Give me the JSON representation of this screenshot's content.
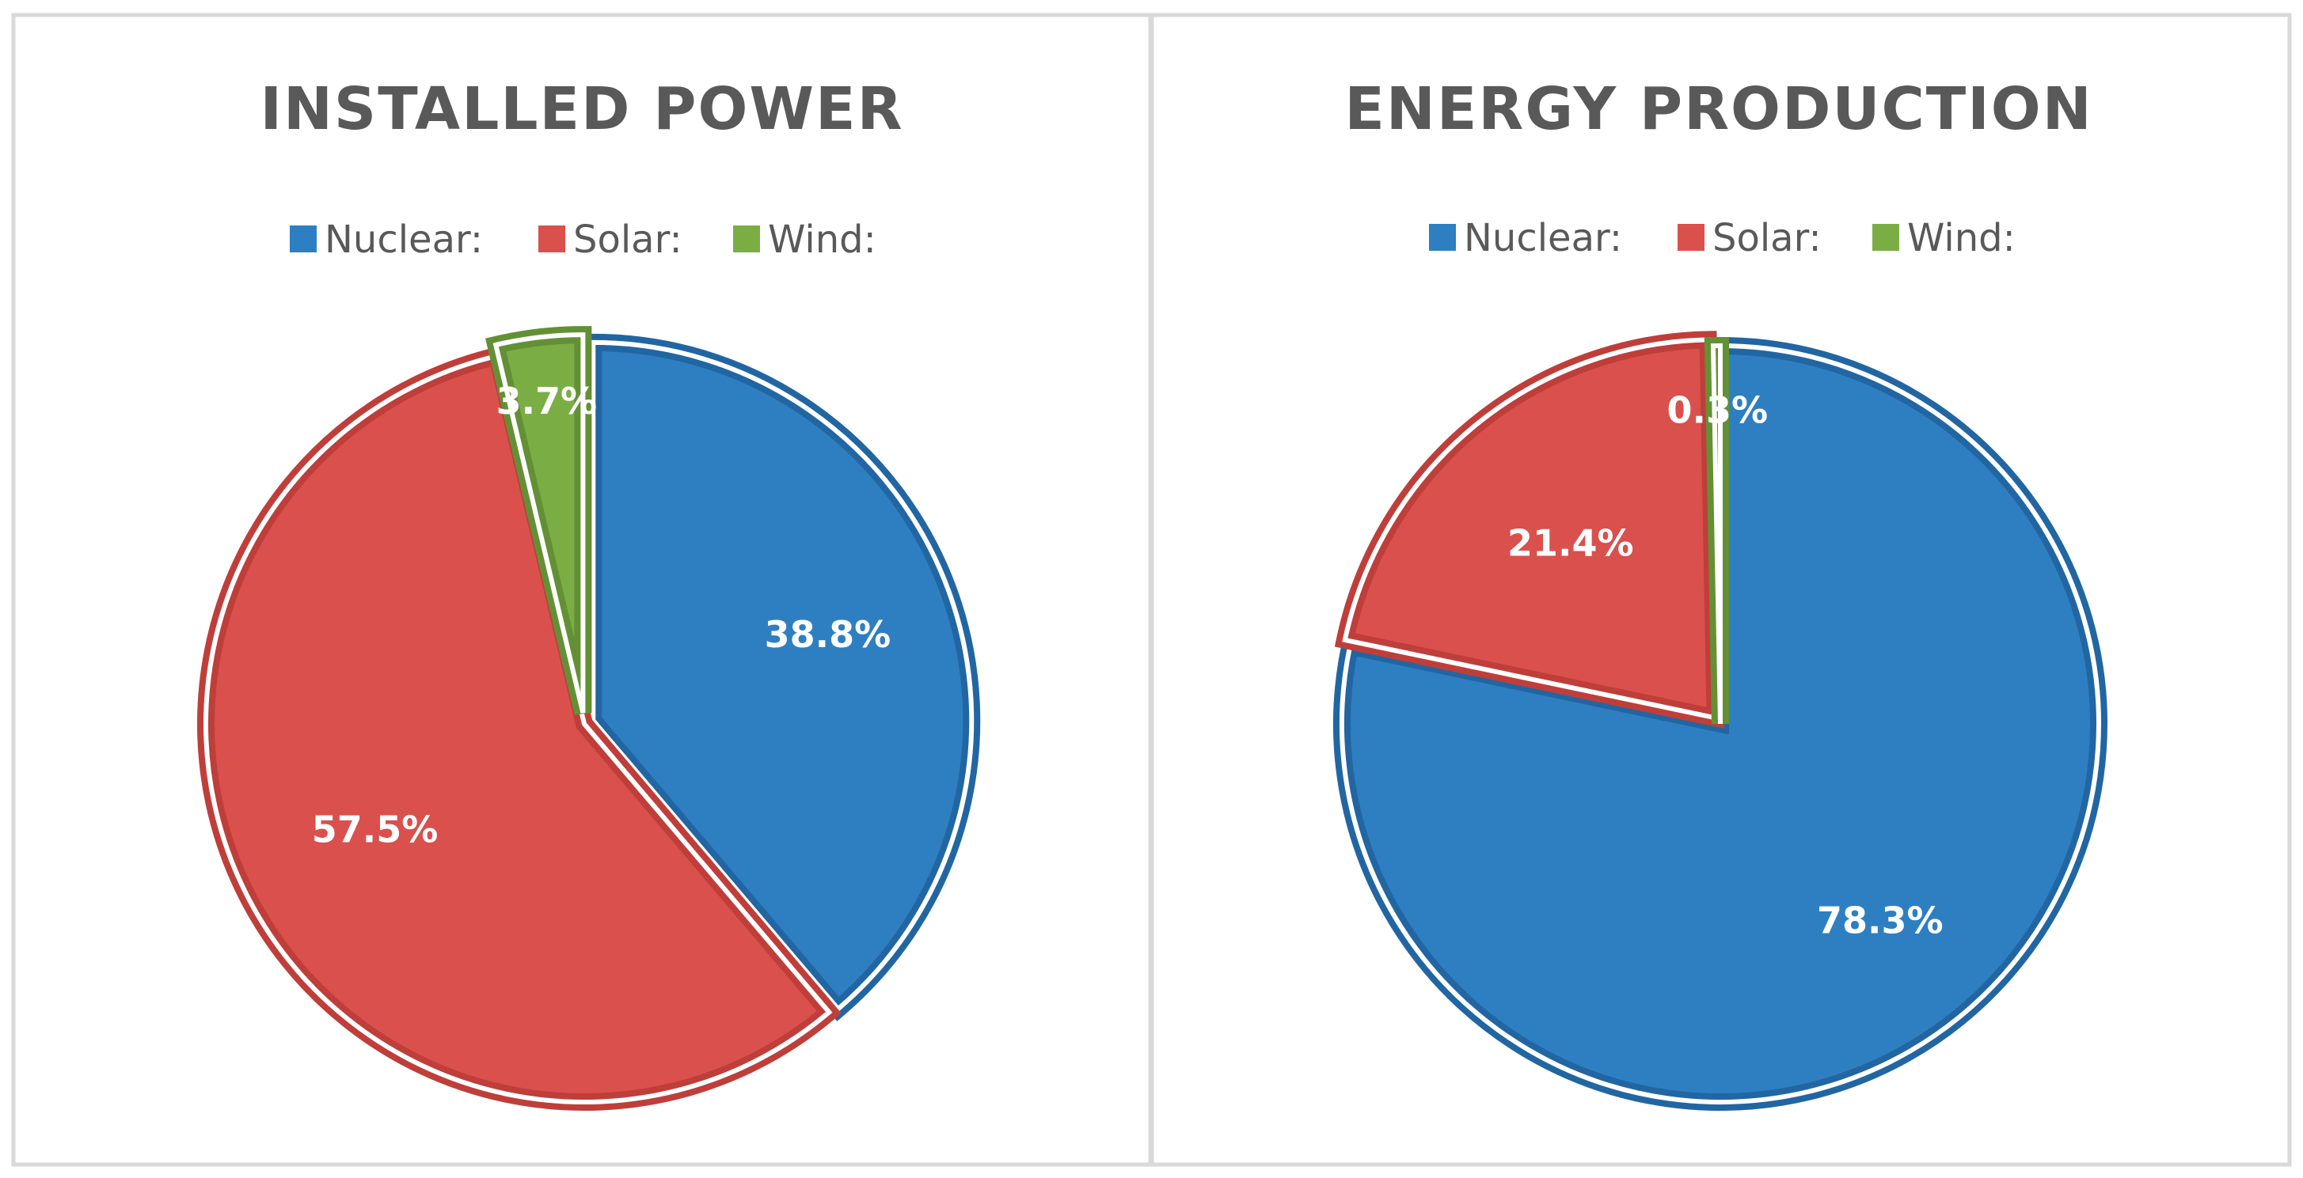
{
  "colors": {
    "Nuclear": "#2e7fc1",
    "Solar": "#d9504c",
    "Wind": "#7bad45",
    "Nuclear_edge": "#2166a2",
    "Solar_edge": "#bf3e3a",
    "Wind_edge": "#639034",
    "title": "#595959",
    "frame": "#d9d9d9"
  },
  "chart_data": [
    {
      "type": "pie",
      "title": "INSTALLED POWER",
      "legend_position": "top",
      "categories": [
        "Nuclear:",
        "Solar:",
        "Wind:"
      ],
      "values": [
        38.8,
        57.5,
        3.7
      ],
      "data_labels": [
        "38.8%",
        "57.5%",
        "3.7%"
      ]
    },
    {
      "type": "pie",
      "title": "ENERGY PRODUCTION",
      "legend_position": "top",
      "categories": [
        "Nuclear:",
        "Solar:",
        "Wind:"
      ],
      "values": [
        78.3,
        21.4,
        0.3
      ],
      "data_labels": [
        "78.3%",
        "21.4%",
        "0.3%"
      ]
    }
  ]
}
